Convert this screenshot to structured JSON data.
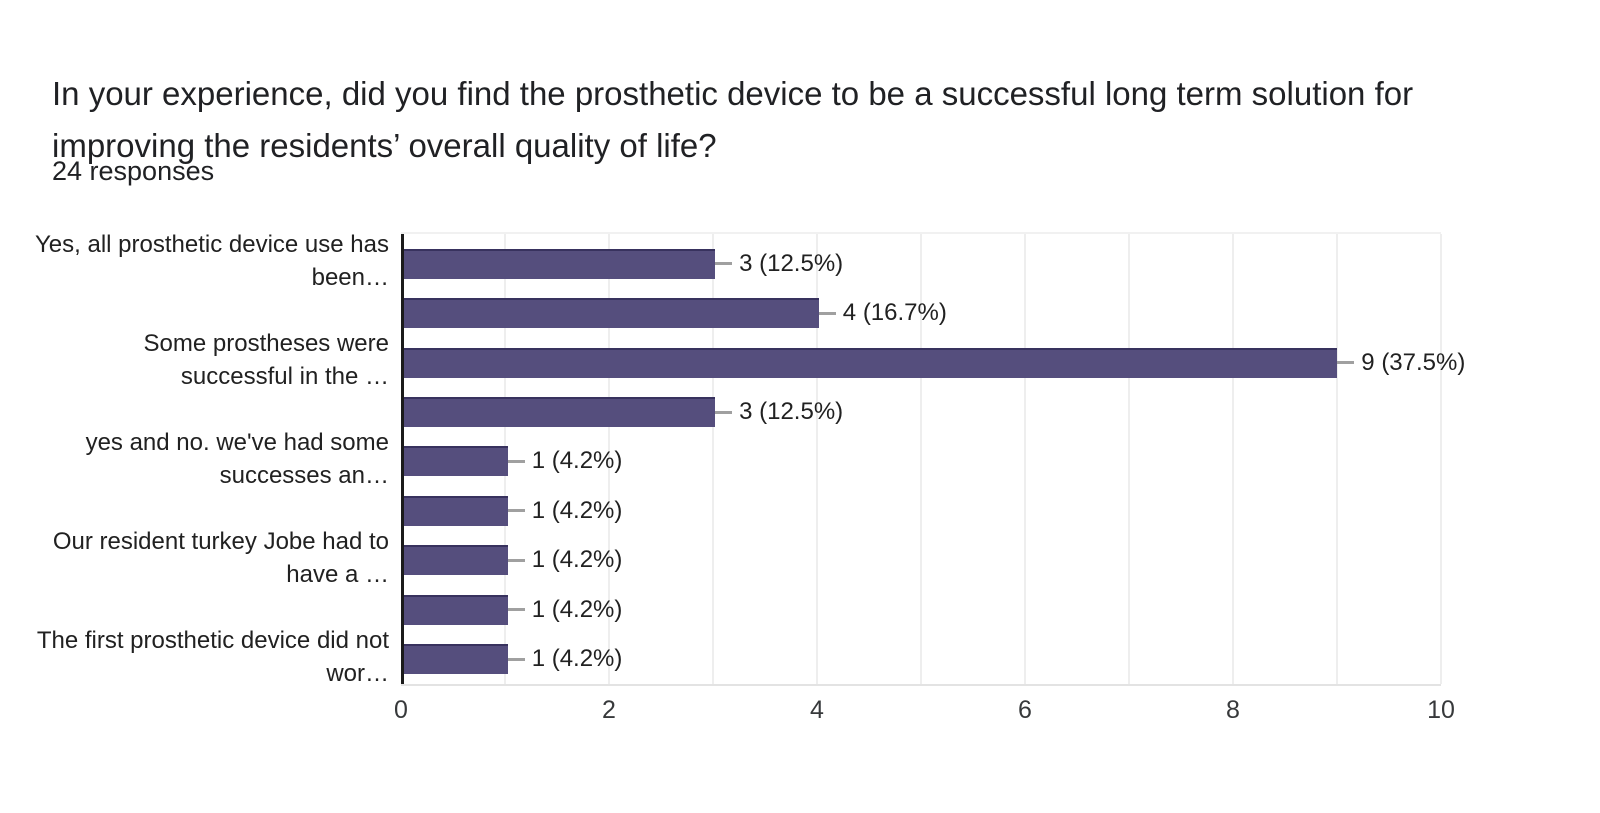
{
  "chart_data": {
    "type": "bar",
    "orientation": "horizontal",
    "title": "In your experience, did you find the prosthetic device to be a successful long term solution for improving the residents’ overall quality of life?",
    "title_lines": [
      "In your experience, did you find the prosthetic device to be a successful long term solution for",
      "improving the residents’ overall quality of life?"
    ],
    "subtitle": "24 responses",
    "values": [
      3,
      4,
      9,
      3,
      1,
      1,
      1,
      1,
      1
    ],
    "data_labels": [
      "3 (12.5%)",
      "4 (16.7%)",
      "9 (37.5%)",
      "3 (12.5%)",
      "1 (4.2%)",
      "1 (4.2%)",
      "1 (4.2%)",
      "1 (4.2%)",
      "1 (4.2%)"
    ],
    "category_labels": [
      [
        "Yes, all prosthetic device use has",
        "been…"
      ],
      [
        "Some prostheses were",
        "successful in the …"
      ],
      [
        "yes and no. we've had some",
        "successes an…"
      ],
      [
        "Our resident turkey Jobe had to",
        "have a …"
      ],
      [
        "The first prosthetic device did not",
        "wor…"
      ]
    ],
    "x_ticks": [
      "0",
      "2",
      "4",
      "6",
      "8",
      "10"
    ],
    "xlim": [
      0,
      10
    ],
    "grid_on": true,
    "legend": "none",
    "bar_color": "#554e7d",
    "bar_border_color": "#38325e",
    "grid_color": "#eeeeee",
    "axis_color": "#1b1b1b",
    "text_color": "#212121"
  }
}
